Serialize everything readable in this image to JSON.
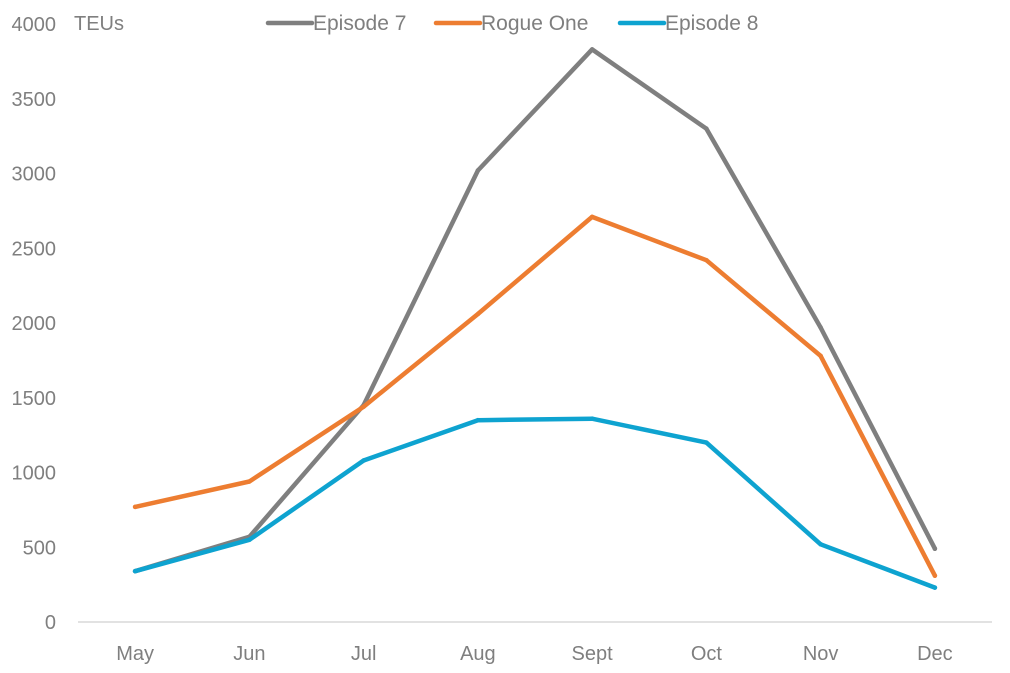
{
  "chart_data": {
    "type": "line",
    "title": "",
    "xlabel": "",
    "ylabel": "TEUs",
    "ylim": [
      0,
      4000
    ],
    "yticks": [
      0,
      500,
      1000,
      1500,
      2000,
      2500,
      3000,
      3500,
      4000
    ],
    "grid": false,
    "legend_position": "top",
    "categories": [
      "May",
      "Jun",
      "Jul",
      "Aug",
      "Sept",
      "Oct",
      "Nov",
      "Dec"
    ],
    "series": [
      {
        "name": "Episode 7",
        "color": "#7f7f7f",
        "values": [
          340,
          570,
          1450,
          3020,
          3830,
          3300,
          1970,
          490
        ]
      },
      {
        "name": "Rogue One",
        "color": "#ed7d31",
        "values": [
          770,
          940,
          1440,
          2060,
          2710,
          2420,
          1780,
          310
        ]
      },
      {
        "name": "Episode 8",
        "color": "#0ea3d0",
        "values": [
          340,
          550,
          1080,
          1350,
          1360,
          1200,
          520,
          230
        ]
      }
    ]
  }
}
